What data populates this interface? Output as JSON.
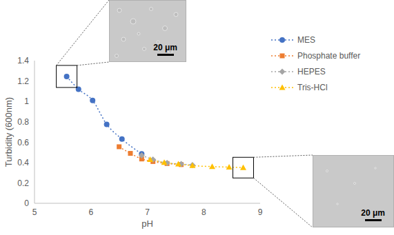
{
  "chart_data": {
    "type": "line",
    "x_label": "pH",
    "y_label": "Turbidity (600nm)",
    "xlim": [
      5,
      9
    ],
    "xticks": [
      5,
      6,
      7,
      8,
      9
    ],
    "ylim": [
      0,
      1.4
    ],
    "yticks": [
      0,
      0.2,
      0.4,
      0.6,
      0.8,
      1,
      1.2,
      1.4
    ],
    "grid": false,
    "legend": "right",
    "line_style": "dotted",
    "series": [
      {
        "name": "MES",
        "color": "#4472c4",
        "marker": "circle",
        "x": [
          5.57,
          5.78,
          6.03,
          6.28,
          6.55,
          6.9
        ],
        "values": [
          1.245,
          1.12,
          1.01,
          0.775,
          0.63,
          0.485
        ]
      },
      {
        "name": "Phosphate buffer",
        "color": "#ed7d31",
        "marker": "square",
        "x": [
          6.5,
          6.7,
          6.9,
          7.1,
          7.35,
          7.6
        ],
        "values": [
          0.555,
          0.49,
          0.435,
          0.41,
          0.39,
          0.38
        ]
      },
      {
        "name": "HEPES",
        "color": "#a5a5a5",
        "marker": "diamond",
        "x": [
          6.9,
          7.1,
          7.35,
          7.6,
          7.8
        ],
        "values": [
          0.47,
          0.43,
          0.395,
          0.385,
          0.375
        ]
      },
      {
        "name": "Tris-HCl",
        "color": "#ffc000",
        "marker": "triangle",
        "x": [
          7.05,
          7.3,
          7.55,
          7.8,
          8.15,
          8.45,
          8.7
        ],
        "values": [
          0.43,
          0.4,
          0.385,
          0.37,
          0.36,
          0.355,
          0.35
        ]
      }
    ],
    "annotations": [
      "20 μm",
      "20 μm"
    ]
  }
}
